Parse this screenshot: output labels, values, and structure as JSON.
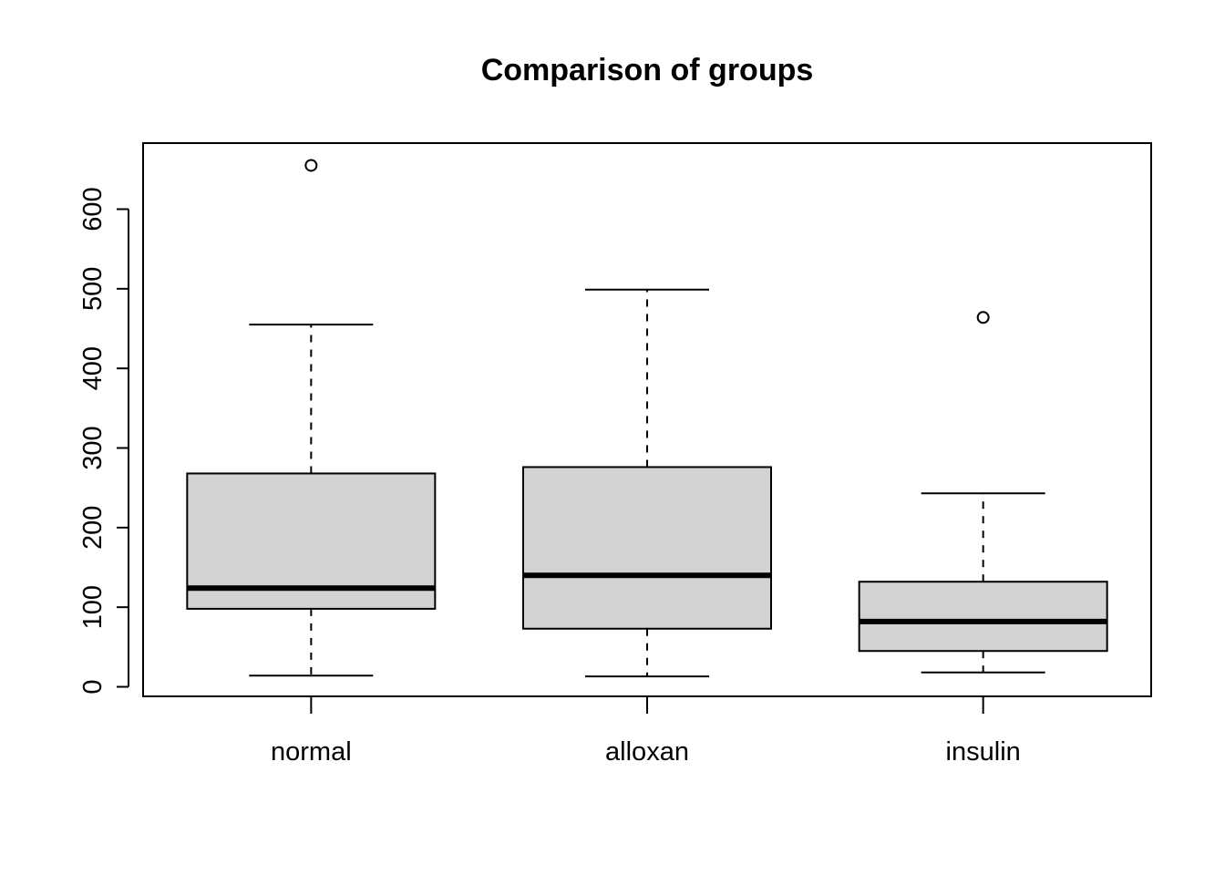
{
  "chart_data": {
    "type": "boxplot",
    "title": "Comparison of groups",
    "xlabel": "",
    "ylabel": "",
    "ylim": [
      -12,
      683
    ],
    "yticks": [
      0,
      100,
      200,
      300,
      400,
      500,
      600
    ],
    "grid": false,
    "categories": [
      "normal",
      "alloxan",
      "insulin"
    ],
    "boxes": [
      {
        "category": "normal",
        "whisker_low": 14,
        "q1": 98,
        "median": 124,
        "q3": 268,
        "whisker_high": 455,
        "outliers": [
          655
        ]
      },
      {
        "category": "alloxan",
        "whisker_low": 13,
        "q1": 73,
        "median": 140,
        "q3": 276,
        "whisker_high": 499,
        "outliers": []
      },
      {
        "category": "insulin",
        "whisker_low": 18,
        "q1": 45,
        "median": 82,
        "q3": 132,
        "whisker_high": 243,
        "outliers": [
          464
        ]
      }
    ],
    "colors": {
      "box_fill": "#d3d3d3",
      "stroke": "#000000"
    }
  }
}
